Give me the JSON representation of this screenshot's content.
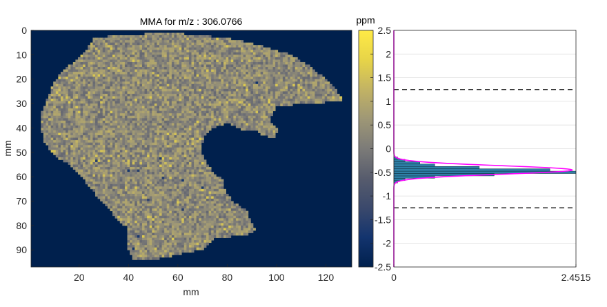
{
  "chart_data": [
    {
      "type": "heatmap",
      "title": "MMA for m/z : 306.0766",
      "xlabel": "mm",
      "ylabel": "mm",
      "xlim": [
        0.5,
        130.5
      ],
      "ylim": [
        0,
        97
      ],
      "x_ticks": [
        20,
        40,
        60,
        80,
        100,
        120
      ],
      "y_ticks": [
        0,
        10,
        20,
        30,
        40,
        50,
        60,
        70,
        80,
        90
      ],
      "background_color": "#00204D",
      "tissue_base_color": "#A7A47C",
      "tissue_value_ppm": -0.45,
      "low_value_pixels_ppm": -2.0,
      "colormap": "cividis"
    },
    {
      "type": "colorbar",
      "label": "ppm",
      "clim": [
        -2.5,
        2.5
      ],
      "ticks": [
        "2.5",
        "2",
        "1.5",
        "1",
        "0.5",
        "0",
        "-0.5",
        "-1",
        "-1.5",
        "-2",
        "-2.5"
      ],
      "colormap": "cividis"
    },
    {
      "type": "bar",
      "orientation": "horizontal",
      "xlim": [
        0,
        2.4515
      ],
      "x_ticks": [
        "0",
        "2.4515"
      ],
      "ylim": [
        -2.5,
        2.5
      ],
      "grid": true,
      "bins_center_ppm": [
        -0.7,
        -0.65,
        -0.6,
        -0.55,
        -0.5,
        -0.45,
        -0.4,
        -0.35,
        -0.3,
        -0.25,
        -0.2
      ],
      "counts": [
        0.05,
        0.15,
        0.55,
        1.35,
        2.45,
        2.1,
        1.15,
        0.55,
        0.35,
        0.15,
        0.05
      ],
      "bar_color": "#2E7FA6",
      "fit_curve": {
        "type": "gaussian",
        "mean": -0.45,
        "sigma": 0.09,
        "peak": 2.4,
        "color": "#FF00FF"
      },
      "threshold_lines_ppm": [
        1.25,
        -1.25
      ]
    }
  ]
}
